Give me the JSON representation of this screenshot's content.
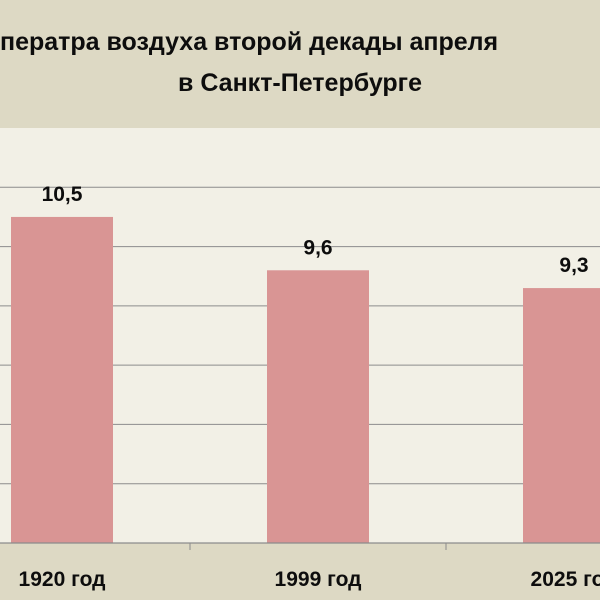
{
  "colors": {
    "background": "#ddd9c4",
    "plot_background": "#f2f0e6",
    "bar": "#d99594",
    "gridline": "#8c8c8c",
    "text": "#0d0d0d"
  },
  "chart_data": {
    "type": "bar",
    "title_line1": "Температра воздуха второй декады апреля",
    "title_line2": "в Санкт-Петербурге",
    "categories": [
      "1920 год",
      "1999 год",
      "2025 год"
    ],
    "values": [
      10.5,
      9.6,
      9.3
    ],
    "value_labels": [
      "10,5",
      "9,6",
      "9,3"
    ],
    "ylim": [
      5,
      12
    ],
    "grid": true,
    "gridline_values": [
      6,
      7,
      8,
      9,
      10,
      11
    ]
  }
}
